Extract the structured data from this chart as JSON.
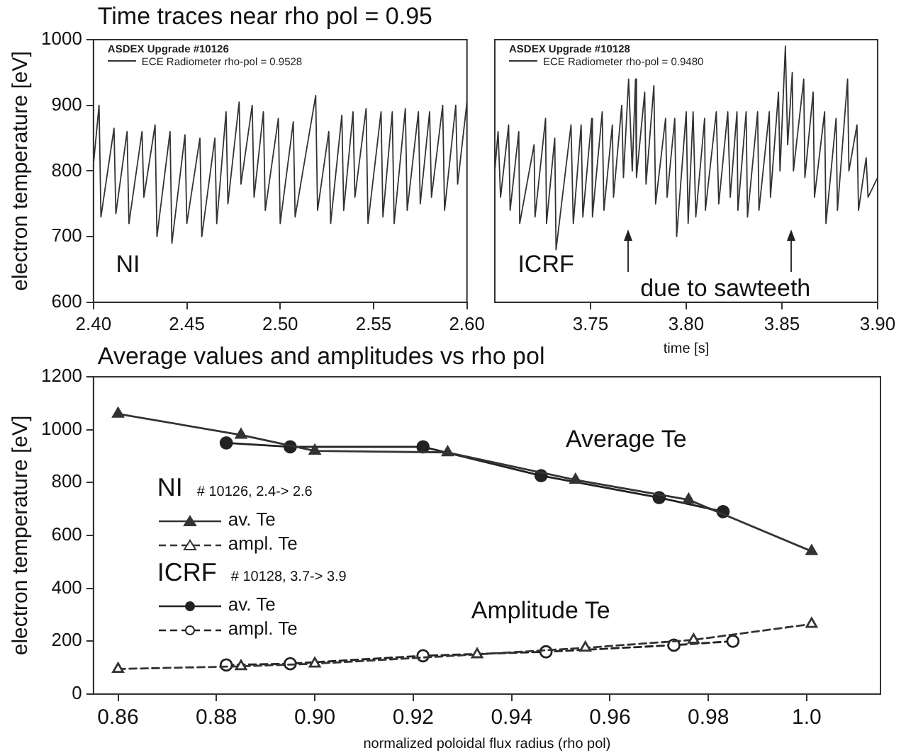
{
  "chart_data": [
    {
      "type": "line",
      "title": "Time traces near rho pol = 0.95",
      "ylabel": "electron temperature [eV]",
      "legend_title": "ASDEX Upgrade #10126",
      "legend": "top left",
      "xlim": [
        2.4,
        2.6
      ],
      "xticks": [
        {
          "value": 2.4,
          "label": "2.40"
        },
        {
          "value": 2.45,
          "label": "2.45"
        },
        {
          "value": 2.5,
          "label": "2.50"
        },
        {
          "value": 2.55,
          "label": "2.55"
        },
        {
          "value": 2.6,
          "label": "2.60"
        }
      ],
      "ylim": [
        600,
        1000
      ],
      "yticks": [
        600,
        700,
        800,
        900,
        1000
      ],
      "annotations": [
        "NI"
      ],
      "series": [
        {
          "name": "ECE Radiometer rho-pol = 0.9528",
          "color": "#333333",
          "x": [
            2.4,
            2.403,
            2.404,
            2.411,
            2.412,
            2.418,
            2.419,
            2.426,
            2.427,
            2.433,
            2.434,
            2.441,
            2.442,
            2.449,
            2.45,
            2.457,
            2.458,
            2.465,
            2.466,
            2.471,
            2.472,
            2.478,
            2.479,
            2.485,
            2.486,
            2.491,
            2.492,
            2.499,
            2.5,
            2.507,
            2.508,
            2.519,
            2.52,
            2.526,
            2.527,
            2.533,
            2.534,
            2.539,
            2.54,
            2.546,
            2.547,
            2.554,
            2.555,
            2.56,
            2.561,
            2.567,
            2.568,
            2.574,
            2.575,
            2.58,
            2.581,
            2.587,
            2.588,
            2.594,
            2.595,
            2.6
          ],
          "values": [
            810,
            900,
            730,
            865,
            735,
            860,
            720,
            860,
            760,
            870,
            700,
            860,
            690,
            855,
            720,
            850,
            700,
            850,
            720,
            890,
            750,
            905,
            780,
            900,
            760,
            890,
            740,
            880,
            720,
            875,
            730,
            915,
            740,
            860,
            720,
            885,
            740,
            890,
            760,
            895,
            720,
            890,
            730,
            890,
            720,
            895,
            740,
            890,
            750,
            890,
            760,
            900,
            740,
            900,
            780,
            905
          ]
        }
      ]
    },
    {
      "type": "line",
      "xlabel": "time [s]",
      "legend_title": "ASDEX Upgrade #10128",
      "legend": "top left",
      "tick_labels": "x",
      "xlim": [
        3.7,
        3.9
      ],
      "xticks": [
        {
          "value": 3.75,
          "label": "3.75"
        },
        {
          "value": 3.8,
          "label": "3.80"
        },
        {
          "value": 3.85,
          "label": "3.85"
        },
        {
          "value": 3.9,
          "label": "3.90"
        }
      ],
      "ylim": [
        600,
        1000
      ],
      "annotations": [
        "ICRF",
        "due to sawteeth"
      ],
      "series": [
        {
          "name": "ECE Radiometer rho-pol = 0.9480",
          "color": "#333333",
          "x": [
            3.7,
            3.7017,
            3.703,
            3.7072,
            3.708,
            3.7125,
            3.713,
            3.7205,
            3.721,
            3.7265,
            3.727,
            3.7313,
            3.732,
            3.7398,
            3.741,
            3.7451,
            3.746,
            3.7506,
            3.751,
            3.7561,
            3.757,
            3.7614,
            3.762,
            3.7663,
            3.7672,
            3.7699,
            3.7718,
            3.7735,
            3.774,
            3.7783,
            3.779,
            3.7831,
            3.784,
            3.7892,
            3.79,
            3.794,
            3.795,
            3.8,
            3.801,
            3.8036,
            3.805,
            3.8096,
            3.81,
            3.8157,
            3.817,
            3.8217,
            3.823,
            3.8265,
            3.827,
            3.8313,
            3.832,
            3.8373,
            3.838,
            3.8434,
            3.844,
            3.8482,
            3.849,
            3.8518,
            3.853,
            3.8554,
            3.856,
            3.8614,
            3.862,
            3.8663,
            3.867,
            3.8723,
            3.873,
            3.8783,
            3.879,
            3.8843,
            3.885,
            3.8892,
            3.89,
            3.894,
            3.895,
            3.9
          ],
          "values": [
            800,
            860,
            760,
            870,
            740,
            860,
            720,
            840,
            730,
            880,
            720,
            850,
            680,
            870,
            720,
            870,
            730,
            880,
            730,
            890,
            740,
            870,
            760,
            900,
            790,
            940,
            800,
            940,
            790,
            920,
            780,
            930,
            750,
            880,
            760,
            880,
            700,
            890,
            720,
            890,
            730,
            880,
            740,
            890,
            750,
            890,
            760,
            890,
            740,
            890,
            730,
            890,
            740,
            890,
            760,
            920,
            800,
            990,
            840,
            950,
            800,
            940,
            790,
            920,
            760,
            890,
            720,
            880,
            740,
            940,
            800,
            870,
            740,
            820,
            760,
            790
          ]
        }
      ]
    },
    {
      "type": "line",
      "title": "Average values and amplitudes  vs  rho pol",
      "xlabel": "normalized poloidal flux radius (rho pol)",
      "ylabel": "electron temperature [eV]",
      "legend": "left",
      "xlim": [
        0.855,
        1.015
      ],
      "xticks": [
        {
          "value": 0.86,
          "label": "0.86"
        },
        {
          "value": 0.88,
          "label": "0.88"
        },
        {
          "value": 0.9,
          "label": "0.90"
        },
        {
          "value": 0.92,
          "label": "0.92"
        },
        {
          "value": 0.94,
          "label": "0.94"
        },
        {
          "value": 0.96,
          "label": "0.96"
        },
        {
          "value": 0.98,
          "label": "0.98"
        },
        {
          "value": 1.0,
          "label": "1.0"
        }
      ],
      "ylim": [
        0,
        1200
      ],
      "yticks": [
        0,
        200,
        400,
        600,
        800,
        1000,
        1200
      ],
      "annotations": [
        "Average Te",
        "Amplitude Te",
        "NI",
        "# 10126, 2.4-> 2.6",
        "ICRF",
        "# 10128, 3.7-> 3.9"
      ],
      "series": [
        {
          "name": "av. Te",
          "color": "#333333",
          "marker": "triangle",
          "line_style": "solid",
          "x": [
            0.86,
            0.885,
            0.9,
            0.927,
            0.953,
            0.976,
            1.001
          ],
          "values": [
            1060,
            980,
            920,
            914,
            810,
            735,
            540
          ]
        },
        {
          "name": "ampl. Te",
          "color": "#333333",
          "marker": "triangle",
          "line_style": "dashed",
          "x": [
            0.86,
            0.885,
            0.9,
            0.933,
            0.955,
            0.977,
            1.001
          ],
          "values": [
            95,
            105,
            115,
            150,
            175,
            205,
            265
          ]
        },
        {
          "name": "av. Te",
          "color": "#222222",
          "marker": "circle",
          "line_style": "solid",
          "x": [
            0.882,
            0.895,
            0.922,
            0.946,
            0.97,
            0.983
          ],
          "values": [
            950,
            935,
            935,
            826,
            743,
            690
          ]
        },
        {
          "name": "ampl. Te",
          "color": "#222222",
          "marker": "circle",
          "line_style": "dashed",
          "x": [
            0.882,
            0.895,
            0.922,
            0.947,
            0.973,
            0.985
          ],
          "values": [
            110,
            115,
            145,
            160,
            185,
            200
          ]
        }
      ]
    }
  ]
}
